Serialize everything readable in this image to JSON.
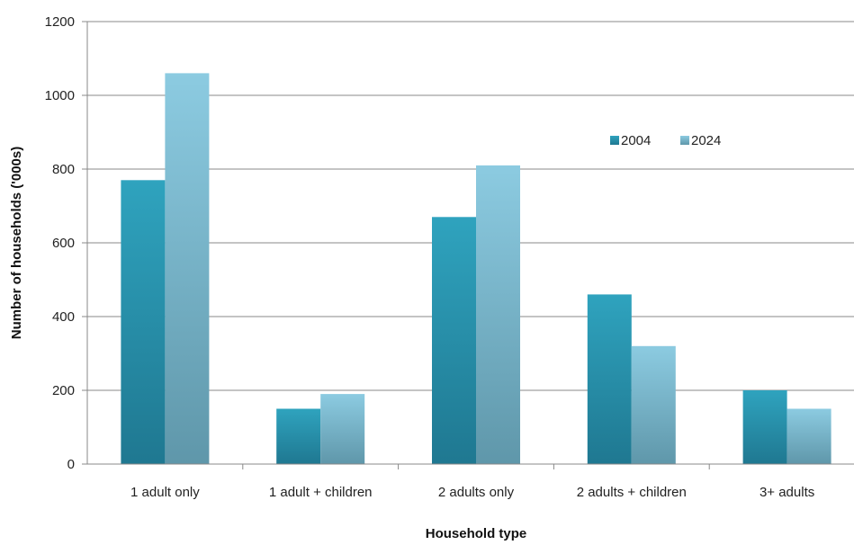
{
  "chart_data": {
    "type": "bar",
    "title": "",
    "xlabel": "Household type",
    "ylabel": "Number of households ('000s)",
    "categories": [
      "1 adult only",
      "1 adult + children",
      "2 adults only",
      "2 adults + children",
      "3+ adults"
    ],
    "series": [
      {
        "name": "2004",
        "values": [
          770,
          150,
          670,
          460,
          200
        ],
        "color": "#2e9ab5"
      },
      {
        "name": "2024",
        "values": [
          1060,
          190,
          810,
          320,
          150
        ],
        "color": "#86c6dc"
      }
    ],
    "ylim": [
      0,
      1200
    ],
    "yticks": [
      "0",
      "200",
      "400",
      "600",
      "800",
      "1000",
      "1200"
    ],
    "grid": true,
    "legend_position": "upper-right"
  }
}
